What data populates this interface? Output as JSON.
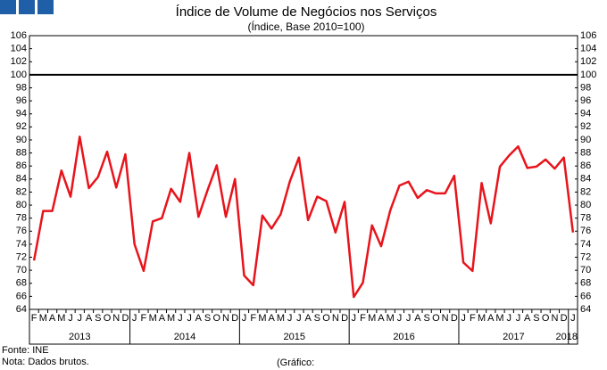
{
  "chart_data": {
    "type": "line",
    "title": "Índice de Volume de Negócios nos Serviços",
    "subtitle": "(Índice, Base 2010=100)",
    "categories": [
      "F",
      "M",
      "A",
      "M",
      "J",
      "J",
      "A",
      "S",
      "O",
      "N",
      "D",
      "J",
      "F",
      "M",
      "A",
      "M",
      "J",
      "J",
      "A",
      "S",
      "O",
      "N",
      "D",
      "J",
      "F",
      "M",
      "A",
      "M",
      "J",
      "J",
      "A",
      "S",
      "O",
      "N",
      "D",
      "J",
      "F",
      "M",
      "A",
      "M",
      "J",
      "J",
      "A",
      "S",
      "O",
      "N",
      "D",
      "J",
      "F",
      "M",
      "A",
      "M",
      "J",
      "J",
      "A",
      "S",
      "O",
      "N",
      "D",
      "J"
    ],
    "year_labels": [
      "2013",
      "2014",
      "2015",
      "2016",
      "2017",
      "2018"
    ],
    "series": [
      {
        "color": "#e8141b",
        "values": [
          71.5,
          79.1,
          79.1,
          85.3,
          81.3,
          90.5,
          82.6,
          84.3,
          88.2,
          82.7,
          87.8,
          74.0,
          69.9,
          77.5,
          78.0,
          82.5,
          80.5,
          88.0,
          78.2,
          82.3,
          86.1,
          78.2,
          84.0,
          69.2,
          67.7,
          78.4,
          76.4,
          78.6,
          83.6,
          87.3,
          77.7,
          81.3,
          80.6,
          75.8,
          80.5,
          65.9,
          68.1,
          76.9,
          73.7,
          79.2,
          83.0,
          83.6,
          81.1,
          82.3,
          81.8,
          81.8,
          84.5,
          71.2,
          69.9,
          83.4,
          77.2,
          85.9,
          87.6,
          89.0,
          85.7,
          85.9,
          87.0,
          85.6,
          87.3,
          75.8
        ]
      }
    ],
    "reference_line": 100,
    "ylim": [
      64,
      106
    ],
    "yticks": [
      64,
      66,
      68,
      70,
      72,
      74,
      76,
      78,
      80,
      82,
      84,
      86,
      88,
      90,
      92,
      94,
      96,
      98,
      100,
      102,
      104,
      106
    ],
    "source": "Fonte: INE",
    "note": "Nota: Dados brutos.",
    "credit": "(Gráfico:"
  }
}
